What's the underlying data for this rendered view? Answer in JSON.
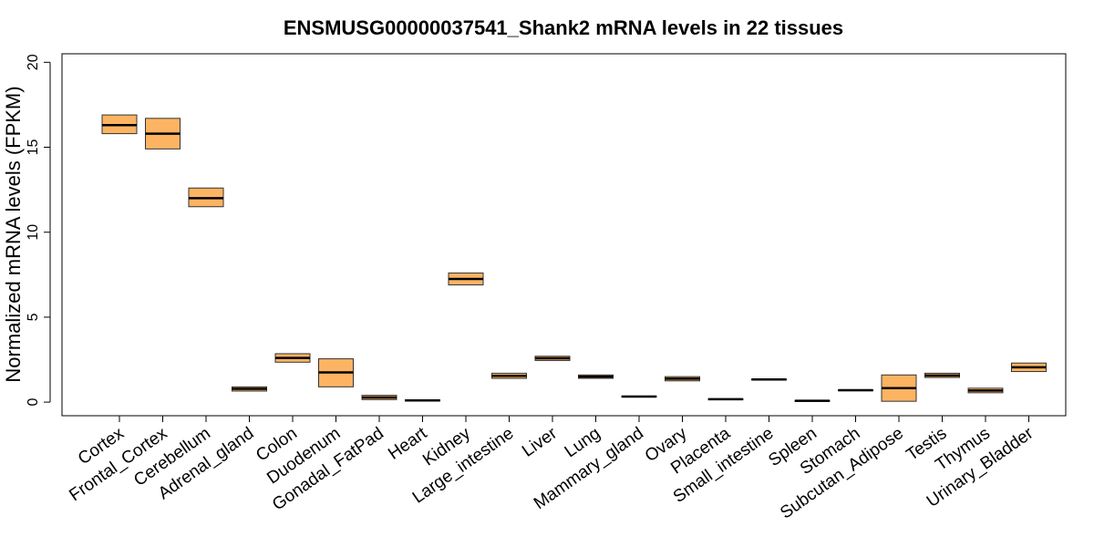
{
  "chart_data": {
    "type": "box",
    "title": "ENSMUSG00000037541_Shank2  mRNA levels in 22 tissues",
    "xlabel": "",
    "ylabel": "Normalized mRNA levels (FPKM)",
    "ylim": [
      -0.8,
      20.5
    ],
    "yticks": [
      0,
      5,
      10,
      15,
      20
    ],
    "box_color": "#FDB462",
    "categories": [
      "Cortex",
      "Frontal_Cortex",
      "Cerebellum",
      "Adrenal_gland",
      "Colon",
      "Duodenum",
      "Gonadal_FatPad",
      "Heart",
      "Kidney",
      "Large_intestine",
      "Liver",
      "Lung",
      "Mammary_gland",
      "Ovary",
      "Placenta",
      "Small_intestine",
      "Spleen",
      "Stomach",
      "Subcutan_Adipose",
      "Testis",
      "Thymus",
      "Urinary_Bladder"
    ],
    "boxes": [
      {
        "q1": 15.8,
        "median": 16.3,
        "q3": 16.9
      },
      {
        "q1": 14.9,
        "median": 15.8,
        "q3": 16.7
      },
      {
        "q1": 11.5,
        "median": 12.0,
        "q3": 12.6
      },
      {
        "q1": 0.65,
        "median": 0.78,
        "q3": 0.9
      },
      {
        "q1": 2.35,
        "median": 2.6,
        "q3": 2.85
      },
      {
        "q1": 0.9,
        "median": 1.75,
        "q3": 2.55
      },
      {
        "q1": 0.15,
        "median": 0.27,
        "q3": 0.4
      },
      {
        "q1": 0.06,
        "median": 0.1,
        "q3": 0.14
      },
      {
        "q1": 6.9,
        "median": 7.25,
        "q3": 7.6
      },
      {
        "q1": 1.4,
        "median": 1.55,
        "q3": 1.7
      },
      {
        "q1": 2.45,
        "median": 2.58,
        "q3": 2.7
      },
      {
        "q1": 1.4,
        "median": 1.5,
        "q3": 1.6
      },
      {
        "q1": 0.3,
        "median": 0.33,
        "q3": 0.36
      },
      {
        "q1": 1.25,
        "median": 1.38,
        "q3": 1.5
      },
      {
        "q1": 0.15,
        "median": 0.17,
        "q3": 0.19
      },
      {
        "q1": 1.3,
        "median": 1.33,
        "q3": 1.36
      },
      {
        "q1": 0.06,
        "median": 0.08,
        "q3": 0.1
      },
      {
        "q1": 0.68,
        "median": 0.7,
        "q3": 0.72
      },
      {
        "q1": 0.05,
        "median": 0.82,
        "q3": 1.6
      },
      {
        "q1": 1.45,
        "median": 1.57,
        "q3": 1.7
      },
      {
        "q1": 0.55,
        "median": 0.68,
        "q3": 0.82
      },
      {
        "q1": 1.8,
        "median": 2.05,
        "q3": 2.3
      }
    ]
  }
}
